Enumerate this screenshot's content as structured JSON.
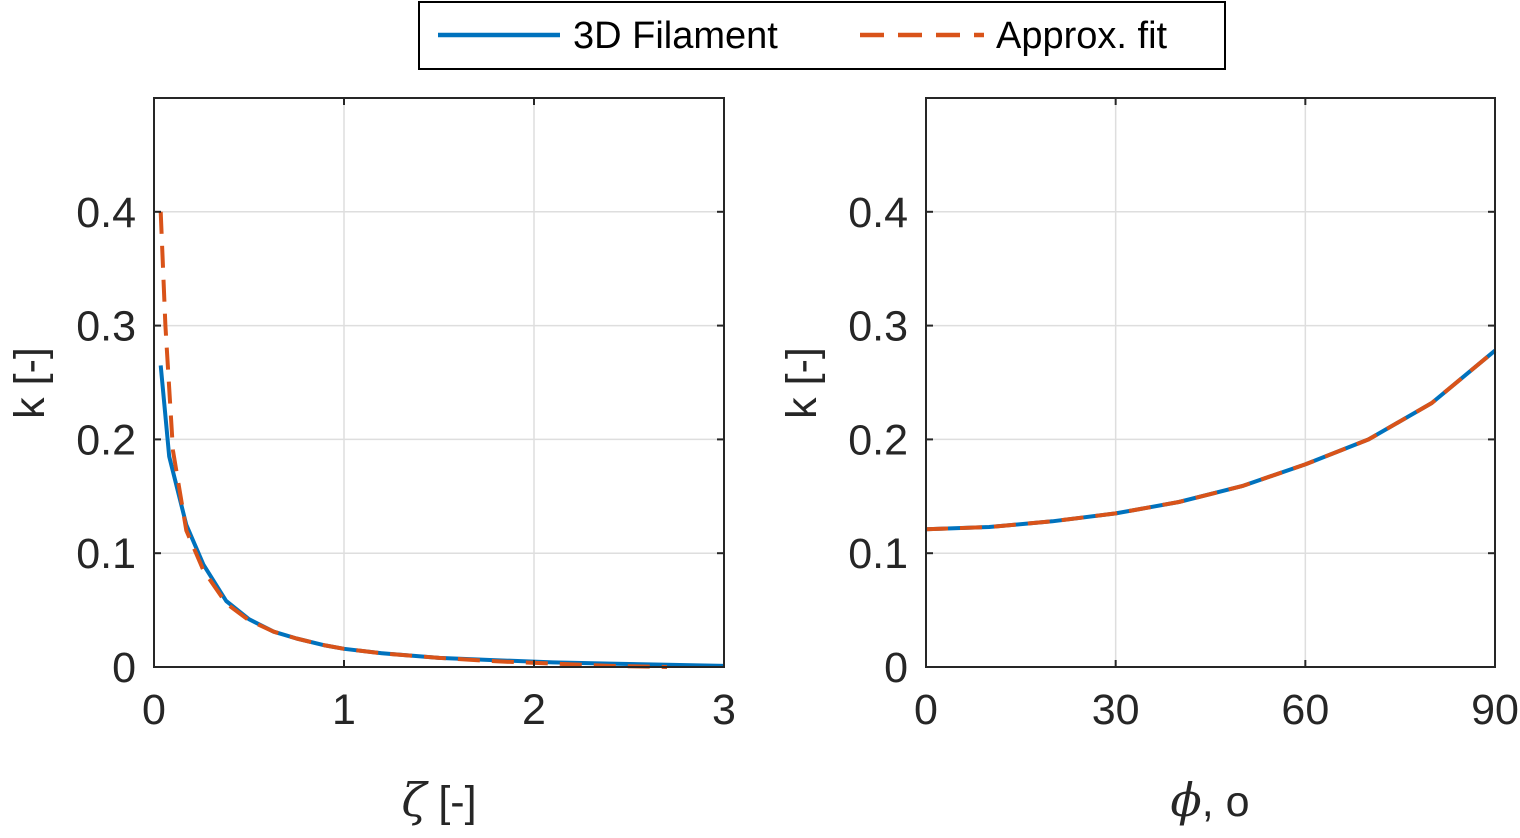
{
  "legend": {
    "placement": "top-center",
    "entries": [
      {
        "label": "3D Filament",
        "color": "#0072BD",
        "style": "solid"
      },
      {
        "label": "Approx. fit",
        "color": "#D95319",
        "style": "dashed"
      }
    ]
  },
  "chart_data": [
    {
      "type": "line",
      "xlabel_symbol": "ζ",
      "xlabel_rest": " [-]",
      "ylabel": "k [-]",
      "xlim": [
        0,
        3
      ],
      "ylim": [
        0,
        0.5
      ],
      "xticks": [
        0,
        1,
        2,
        3
      ],
      "xtick_labels": [
        "0",
        "1",
        "2",
        "3"
      ],
      "yticks": [
        0,
        0.1,
        0.2,
        0.3,
        0.4
      ],
      "ytick_labels": [
        "0",
        "0.1",
        "0.2",
        "0.3",
        "0.4"
      ],
      "grid": true,
      "series": [
        {
          "name": "3D Filament",
          "color": "#0072BD",
          "dash": "solid",
          "x": [
            0.035,
            0.08,
            0.17,
            0.26,
            0.38,
            0.5,
            0.63,
            0.75,
            0.9,
            1.0,
            1.2,
            1.5,
            1.8,
            2.1,
            2.4,
            2.7,
            3.0
          ],
          "y": [
            0.265,
            0.185,
            0.125,
            0.09,
            0.058,
            0.042,
            0.031,
            0.025,
            0.019,
            0.016,
            0.012,
            0.008,
            0.006,
            0.004,
            0.003,
            0.002,
            0.001
          ]
        },
        {
          "name": "Approx. fit",
          "color": "#D95319",
          "dash": "dashed",
          "x": [
            0.035,
            0.06,
            0.1,
            0.17,
            0.26,
            0.38,
            0.5,
            0.63,
            0.75,
            0.9,
            1.0,
            1.2,
            1.5,
            1.8,
            2.1,
            2.4,
            2.7
          ],
          "y": [
            0.4,
            0.3,
            0.19,
            0.12,
            0.085,
            0.056,
            0.041,
            0.031,
            0.025,
            0.019,
            0.016,
            0.012,
            0.008,
            0.005,
            0.003,
            0.001,
            0.0
          ]
        }
      ]
    },
    {
      "type": "line",
      "xlabel_symbol": "ϕ",
      "xlabel_rest": ", o",
      "ylabel": "k [-]",
      "xlim": [
        0,
        90
      ],
      "ylim": [
        0,
        0.5
      ],
      "xticks": [
        0,
        30,
        60,
        90
      ],
      "xtick_labels": [
        "0",
        "30",
        "60",
        "90"
      ],
      "yticks": [
        0,
        0.1,
        0.2,
        0.3,
        0.4
      ],
      "ytick_labels": [
        "0",
        "0.1",
        "0.2",
        "0.3",
        "0.4"
      ],
      "grid": true,
      "series": [
        {
          "name": "3D Filament",
          "color": "#0072BD",
          "dash": "solid",
          "x": [
            0,
            10,
            20,
            30,
            40,
            50,
            60,
            70,
            80,
            90
          ],
          "y": [
            0.121,
            0.123,
            0.128,
            0.135,
            0.145,
            0.159,
            0.178,
            0.2,
            0.232,
            0.278
          ]
        },
        {
          "name": "Approx. fit",
          "color": "#D95319",
          "dash": "dashed",
          "x": [
            0,
            10,
            20,
            30,
            40,
            50,
            60,
            70,
            80,
            90
          ],
          "y": [
            0.121,
            0.123,
            0.128,
            0.135,
            0.145,
            0.159,
            0.178,
            0.2,
            0.232,
            0.278
          ]
        }
      ]
    }
  ]
}
